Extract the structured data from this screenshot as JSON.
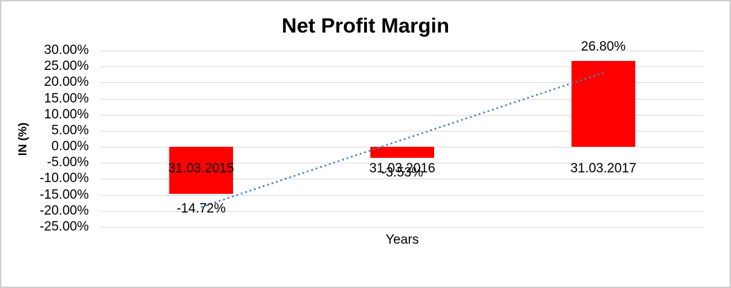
{
  "frame": {
    "background": "#ffffff",
    "border_color": "#d0cece"
  },
  "chart_data": {
    "type": "bar",
    "title": "Net Profit Margin",
    "xlabel": "Years",
    "ylabel": "IN (%)",
    "categories": [
      "31.03.2015",
      "31.03.2016",
      "31.03.2017"
    ],
    "series": [
      {
        "name": "Net Profit Margin",
        "color": "#ff0000",
        "values": [
          -14.72,
          -3.53,
          26.8
        ],
        "labels": [
          "-14.72%",
          "-3.53%",
          "26.80%"
        ]
      }
    ],
    "ylim": [
      -25,
      30
    ],
    "yticks": [
      30,
      25,
      20,
      15,
      10,
      5,
      0,
      -5,
      -10,
      -15,
      -20,
      -25
    ],
    "ytick_labels": [
      "30.00%",
      "25.00%",
      "20.00%",
      "15.00%",
      "10.00%",
      "5.00%",
      "0.00%",
      "-5.00%",
      "-10.00%",
      "-15.00%",
      "-20.00%",
      "-25.00%"
    ],
    "grid": "horizontal",
    "gridline_color": "#d9d9d9",
    "legend": "none",
    "trendline": {
      "type": "linear",
      "style": "dotted",
      "color": "#4a7fc1",
      "start": {
        "category_index": 0,
        "value": -18.75
      },
      "end": {
        "category_index": 2,
        "value": 23.1
      }
    }
  }
}
